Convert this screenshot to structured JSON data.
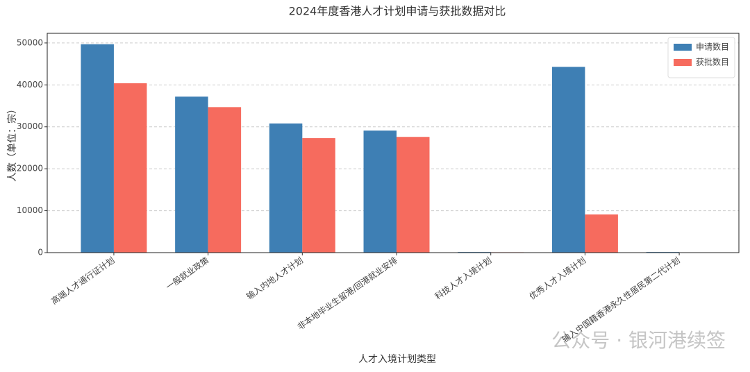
{
  "chart_data": {
    "type": "bar",
    "title": "2024年度香港人才计划申请与获批数据对比",
    "x_label": "人才入境计划类型",
    "y_label": "人数（单位：宗）",
    "categories": [
      "高端人才通行证计划",
      "一般就业政策",
      "输入内地人才计划",
      "非本地毕业生留港/回港就业安排",
      "科技人才入境计划",
      "优秀人才入境计划",
      "输入中国籍香港永久性居民第二代计划"
    ],
    "series": [
      {
        "name": "申请数目",
        "color": "#3e7fb4",
        "values": [
          49700,
          37200,
          30800,
          29100,
          150,
          44300,
          150
        ]
      },
      {
        "name": "获批数目",
        "color": "#f66b5e",
        "values": [
          40400,
          34700,
          27300,
          27600,
          100,
          9100,
          0
        ]
      }
    ],
    "ylim": [
      0,
      52300
    ],
    "yticks": [
      0,
      10000,
      20000,
      30000,
      40000,
      50000
    ],
    "grid": true,
    "legend": "upper right",
    "watermark": "公众号 · 银河港续签"
  }
}
